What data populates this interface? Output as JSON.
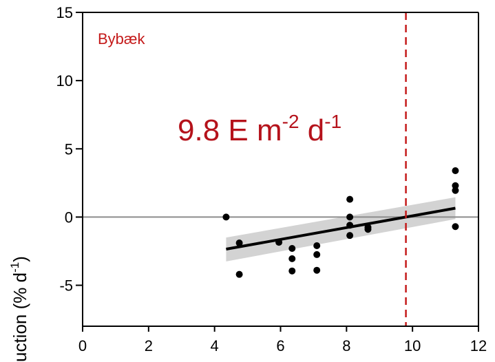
{
  "chart_data": {
    "type": "scatter",
    "title": "",
    "panel_label": "Bybæk",
    "ylabel": {
      "prefix": "uction (% d",
      "exp": "-1",
      "suffix": ")"
    },
    "xlabel": "",
    "xlim": [
      0,
      12
    ],
    "ylim": [
      -8,
      15
    ],
    "x_ticks": [
      0,
      2,
      4,
      6,
      8,
      10,
      12
    ],
    "y_ticks": [
      15,
      10,
      5,
      0,
      -5
    ],
    "points": [
      {
        "x": 4.35,
        "y": 0.0
      },
      {
        "x": 4.75,
        "y": -1.9
      },
      {
        "x": 4.75,
        "y": -4.2
      },
      {
        "x": 5.95,
        "y": -1.85
      },
      {
        "x": 6.35,
        "y": -2.3
      },
      {
        "x": 6.35,
        "y": -3.05
      },
      {
        "x": 6.35,
        "y": -3.95
      },
      {
        "x": 7.1,
        "y": -2.1
      },
      {
        "x": 7.1,
        "y": -2.75
      },
      {
        "x": 7.1,
        "y": -3.9
      },
      {
        "x": 8.1,
        "y": 1.3
      },
      {
        "x": 8.1,
        "y": 0.0
      },
      {
        "x": 8.1,
        "y": -0.6
      },
      {
        "x": 8.1,
        "y": -1.35
      },
      {
        "x": 8.65,
        "y": -0.75
      },
      {
        "x": 8.65,
        "y": -0.9
      },
      {
        "x": 11.3,
        "y": 3.4
      },
      {
        "x": 11.3,
        "y": 2.3
      },
      {
        "x": 11.3,
        "y": 1.95
      },
      {
        "x": 11.3,
        "y": -0.7
      }
    ],
    "fit_line": {
      "x": [
        4.35,
        11.3
      ],
      "y": [
        -2.35,
        0.65
      ]
    },
    "confidence_band": {
      "x": [
        4.35,
        11.3
      ],
      "lower": [
        -3.25,
        -0.15
      ],
      "upper": [
        -1.5,
        1.45
      ]
    },
    "reference_hline": {
      "y": 0
    },
    "threshold_vline": {
      "x": 9.8
    },
    "threshold_label": {
      "value": "9.8",
      "unit_prefix": "E m",
      "exp1": "-2",
      "middle": " d",
      "exp2": "-1"
    },
    "grid": false,
    "colors": {
      "points": "#000000",
      "fit": "#000000",
      "band": "#d3d3d3",
      "zero_line": "#8c8c8c",
      "threshold": "#c41a1a",
      "panel_label": "#c41a1a",
      "threshold_label": "#b5121b"
    }
  }
}
